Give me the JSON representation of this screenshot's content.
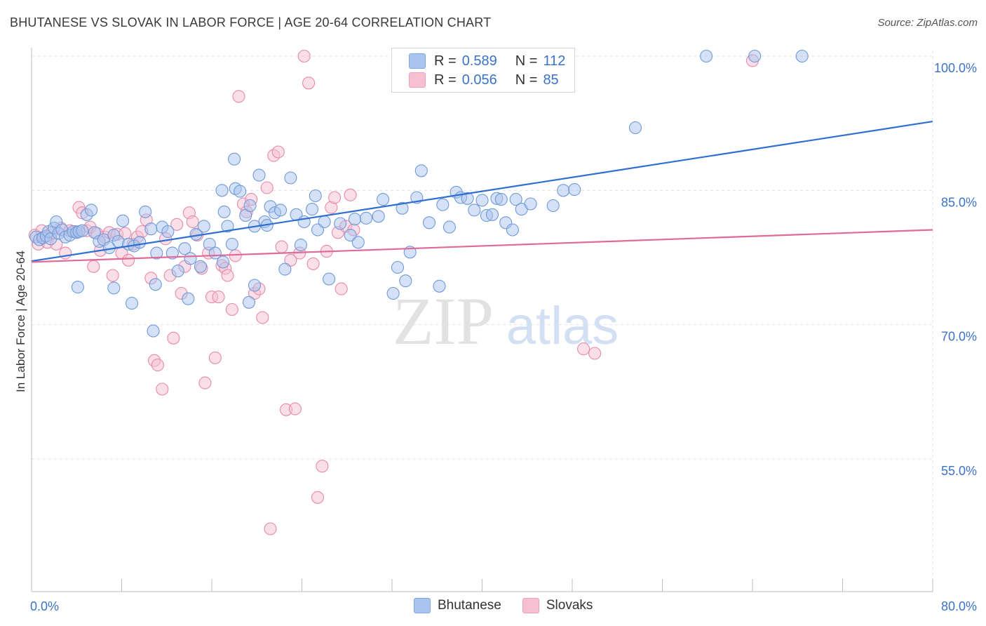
{
  "header": {
    "title": "BHUTANESE VS SLOVAK IN LABOR FORCE | AGE 20-64 CORRELATION CHART",
    "source": "Source: ZipAtlas.com"
  },
  "watermark": {
    "zip": "ZIP",
    "atlas": "atlas"
  },
  "legend": {
    "r_label": "R =",
    "n_label": "N =",
    "rows": [
      {
        "r": "0.589",
        "n": "112",
        "color": "#7ea6e0"
      },
      {
        "r": "0.056",
        "n": "85",
        "color": "#f0a0bc"
      }
    ]
  },
  "colors": {
    "blue_fill": "#a9c4ee",
    "blue_stroke": "#6f9ad8",
    "blue_line": "#2f6fcf",
    "pink_fill": "#f6bfd2",
    "pink_stroke": "#e58aab",
    "pink_line": "#e06a98",
    "tick_label": "#3b73c9",
    "grid": "#e3e3e3"
  },
  "chart_data": {
    "type": "scatter",
    "title": "BHUTANESE VS SLOVAK IN LABOR FORCE | AGE 20-64 CORRELATION CHART",
    "xlabel": "",
    "ylabel": "In Labor Force | Age 20-64",
    "xlim": [
      0,
      80
    ],
    "ylim": [
      43,
      101
    ],
    "x_tick_labels": [
      {
        "value": 0,
        "label": "0.0%"
      },
      {
        "value": 80,
        "label": "80.0%"
      }
    ],
    "y_tick_labels": [
      {
        "value": 100,
        "label": "100.0%"
      },
      {
        "value": 85,
        "label": "85.0%"
      },
      {
        "value": 70,
        "label": "70.0%"
      },
      {
        "value": 55,
        "label": "55.0%"
      }
    ],
    "grid": true,
    "legend_position": "top-center",
    "series": [
      {
        "name": "Bhutanese",
        "R": 0.589,
        "N": 112,
        "trend": {
          "x": [
            0,
            80
          ],
          "y": [
            77.1,
            92.7
          ]
        },
        "points": [
          [
            0.4,
            79.8
          ],
          [
            0.7,
            79.5
          ],
          [
            1.0,
            79.7
          ],
          [
            1.3,
            79.9
          ],
          [
            1.5,
            80.4
          ],
          [
            1.7,
            79.6
          ],
          [
            2.0,
            80.8
          ],
          [
            2.2,
            81.5
          ],
          [
            2.4,
            80.2
          ],
          [
            2.7,
            80.6
          ],
          [
            3.0,
            79.8
          ],
          [
            3.4,
            80.0
          ],
          [
            3.7,
            80.4
          ],
          [
            4.0,
            80.3
          ],
          [
            4.2,
            80.4
          ],
          [
            4.5,
            80.5
          ],
          [
            4.9,
            82.3
          ],
          [
            5.3,
            82.8
          ],
          [
            5.6,
            80.3
          ],
          [
            6.0,
            79.3
          ],
          [
            6.4,
            79.5
          ],
          [
            6.9,
            78.6
          ],
          [
            7.3,
            80.0
          ],
          [
            7.7,
            79.3
          ],
          [
            8.1,
            81.6
          ],
          [
            8.6,
            79.0
          ],
          [
            9.1,
            78.8
          ],
          [
            9.6,
            79.2
          ],
          [
            10.1,
            82.6
          ],
          [
            10.6,
            80.7
          ],
          [
            11.1,
            78.0
          ],
          [
            11.6,
            80.9
          ],
          [
            12.1,
            80.4
          ],
          [
            12.5,
            78.0
          ],
          [
            13.0,
            76.0
          ],
          [
            13.6,
            78.5
          ],
          [
            14.1,
            77.4
          ],
          [
            14.6,
            80.1
          ],
          [
            15.0,
            76.5
          ],
          [
            15.3,
            81.0
          ],
          [
            15.8,
            79.0
          ],
          [
            16.3,
            78.0
          ],
          [
            16.9,
            85.0
          ],
          [
            17.1,
            82.6
          ],
          [
            17.4,
            81.0
          ],
          [
            17.8,
            79.0
          ],
          [
            18.1,
            85.2
          ],
          [
            18.5,
            84.9
          ],
          [
            19.0,
            82.2
          ],
          [
            19.4,
            83.3
          ],
          [
            19.8,
            81.0
          ],
          [
            20.2,
            86.7
          ],
          [
            20.7,
            81.5
          ],
          [
            20.9,
            81.1
          ],
          [
            21.2,
            83.2
          ],
          [
            21.6,
            82.5
          ],
          [
            22.1,
            82.8
          ],
          [
            22.5,
            76.2
          ],
          [
            23.0,
            86.4
          ],
          [
            23.5,
            82.3
          ],
          [
            23.9,
            78.9
          ],
          [
            24.2,
            81.5
          ],
          [
            24.9,
            82.9
          ],
          [
            25.2,
            84.4
          ],
          [
            25.4,
            80.6
          ],
          [
            26.0,
            81.5
          ],
          [
            26.4,
            75.1
          ],
          [
            27.4,
            81.3
          ],
          [
            28.3,
            80.0
          ],
          [
            28.7,
            81.8
          ],
          [
            29.0,
            79.2
          ],
          [
            29.7,
            81.9
          ],
          [
            30.8,
            82.1
          ],
          [
            31.2,
            84.0
          ],
          [
            32.1,
            73.5
          ],
          [
            32.5,
            76.4
          ],
          [
            32.9,
            83.0
          ],
          [
            33.2,
            74.9
          ],
          [
            33.6,
            78.1
          ],
          [
            34.2,
            84.2
          ],
          [
            34.6,
            87.2
          ],
          [
            35.3,
            81.4
          ],
          [
            36.2,
            74.3
          ],
          [
            36.5,
            83.4
          ],
          [
            37.1,
            80.9
          ],
          [
            37.7,
            84.8
          ],
          [
            38.1,
            84.2
          ],
          [
            38.7,
            84.1
          ],
          [
            39.3,
            82.8
          ],
          [
            40.0,
            83.9
          ],
          [
            40.4,
            82.2
          ],
          [
            40.9,
            82.3
          ],
          [
            41.3,
            84.1
          ],
          [
            41.7,
            84.0
          ],
          [
            42.1,
            81.4
          ],
          [
            42.7,
            80.6
          ],
          [
            43.0,
            84.0
          ],
          [
            43.5,
            82.9
          ],
          [
            44.3,
            83.5
          ],
          [
            46.3,
            83.3
          ],
          [
            47.2,
            85.0
          ],
          [
            48.2,
            85.1
          ],
          [
            53.6,
            92.0
          ],
          [
            59.9,
            100.0
          ],
          [
            64.2,
            100.0
          ],
          [
            68.4,
            100.0
          ],
          [
            18.0,
            88.5
          ],
          [
            11.0,
            74.5
          ],
          [
            8.9,
            72.4
          ],
          [
            4.1,
            74.2
          ],
          [
            7.3,
            74.1
          ],
          [
            10.8,
            69.3
          ],
          [
            13.9,
            72.9
          ],
          [
            19.3,
            72.5
          ],
          [
            17.0,
            77.0
          ],
          [
            19.8,
            74.4
          ]
        ]
      },
      {
        "name": "Slovaks",
        "R": 0.056,
        "N": 85,
        "trend": {
          "x": [
            0,
            80
          ],
          "y": [
            77.0,
            80.6
          ]
        },
        "points": [
          [
            0.3,
            80.0
          ],
          [
            0.6,
            79.0
          ],
          [
            0.9,
            80.5
          ],
          [
            1.1,
            79.8
          ],
          [
            1.4,
            79.2
          ],
          [
            1.8,
            80.3
          ],
          [
            2.2,
            79.0
          ],
          [
            2.6,
            80.8
          ],
          [
            3.0,
            78.0
          ],
          [
            3.4,
            80.5
          ],
          [
            3.9,
            80.4
          ],
          [
            4.2,
            83.1
          ],
          [
            4.5,
            82.5
          ],
          [
            4.9,
            80.5
          ],
          [
            5.2,
            80.9
          ],
          [
            5.5,
            76.5
          ],
          [
            5.8,
            80.2
          ],
          [
            6.1,
            78.3
          ],
          [
            6.5,
            79.8
          ],
          [
            6.9,
            80.3
          ],
          [
            7.2,
            75.5
          ],
          [
            7.6,
            80.1
          ],
          [
            8.0,
            78.0
          ],
          [
            8.3,
            80.2
          ],
          [
            8.6,
            77.2
          ],
          [
            9.0,
            79.0
          ],
          [
            9.4,
            79.8
          ],
          [
            9.8,
            80.4
          ],
          [
            10.2,
            81.7
          ],
          [
            10.6,
            75.2
          ],
          [
            10.9,
            66.0
          ],
          [
            11.2,
            65.5
          ],
          [
            11.6,
            62.8
          ],
          [
            11.9,
            79.6
          ],
          [
            12.3,
            75.5
          ],
          [
            12.6,
            68.5
          ],
          [
            12.9,
            81.2
          ],
          [
            13.3,
            73.5
          ],
          [
            13.6,
            76.5
          ],
          [
            14.0,
            82.5
          ],
          [
            14.3,
            81.5
          ],
          [
            14.7,
            80.0
          ],
          [
            15.1,
            76.3
          ],
          [
            15.4,
            63.5
          ],
          [
            15.7,
            78.0
          ],
          [
            16.0,
            73.1
          ],
          [
            16.3,
            66.3
          ],
          [
            16.6,
            73.1
          ],
          [
            16.9,
            76.6
          ],
          [
            17.2,
            76.3
          ],
          [
            17.4,
            75.5
          ],
          [
            17.8,
            71.7
          ],
          [
            18.1,
            77.7
          ],
          [
            18.4,
            95.5
          ],
          [
            18.8,
            83.5
          ],
          [
            19.1,
            82.6
          ],
          [
            19.5,
            84.0
          ],
          [
            19.8,
            73.5
          ],
          [
            20.2,
            74.0
          ],
          [
            20.5,
            70.8
          ],
          [
            20.9,
            85.3
          ],
          [
            21.2,
            47.2
          ],
          [
            21.5,
            88.9
          ],
          [
            21.9,
            89.3
          ],
          [
            22.2,
            78.7
          ],
          [
            22.6,
            60.5
          ],
          [
            23.0,
            77.2
          ],
          [
            23.4,
            60.6
          ],
          [
            23.8,
            78.0
          ],
          [
            24.2,
            100.0
          ],
          [
            24.6,
            97.0
          ],
          [
            25.0,
            76.8
          ],
          [
            25.4,
            50.7
          ],
          [
            25.8,
            54.2
          ],
          [
            26.2,
            78.2
          ],
          [
            26.6,
            83.1
          ],
          [
            26.9,
            84.2
          ],
          [
            27.2,
            80.3
          ],
          [
            27.5,
            74.0
          ],
          [
            27.9,
            81.0
          ],
          [
            28.3,
            84.5
          ],
          [
            28.6,
            80.6
          ],
          [
            49.0,
            67.3
          ],
          [
            50.0,
            66.8
          ],
          [
            64.0,
            99.5
          ]
        ]
      }
    ]
  },
  "bottom_legend": [
    {
      "label": "Bhutanese",
      "color": "#a9c4ee"
    },
    {
      "label": "Slovaks",
      "color": "#f6bfd2"
    }
  ]
}
